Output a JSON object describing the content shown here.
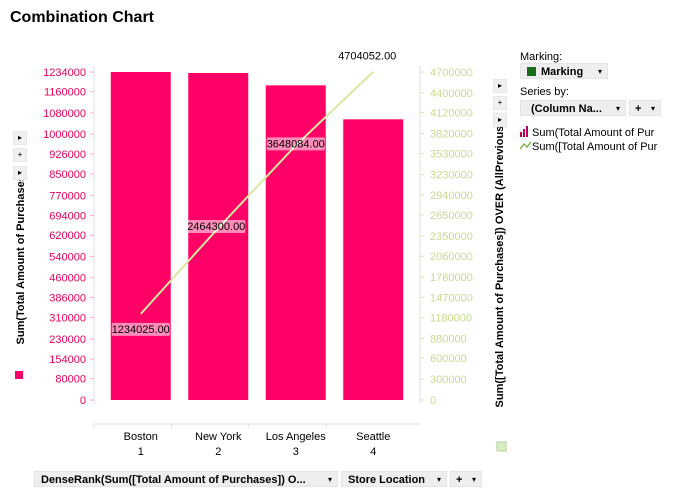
{
  "title": "Combination Chart",
  "controls": {
    "marking_label": "Marking:",
    "marking_value": "Marking",
    "marking_color": "#1a6b1a",
    "series_by_label": "Series by:",
    "series_by_value": "(Column Na...",
    "x_axis_selector": "DenseRank(Sum([Total Amount of Purchases]) O...",
    "x_axis_selector_2": "Store Location",
    "plus": "+",
    "arrow": "▾",
    "right_arrow": "▸"
  },
  "legend": [
    {
      "label": "Sum(Total Amount of Pur",
      "icon": "bar-series-icon",
      "color": "#b5005b"
    },
    {
      "label": "Sum([Total Amount of Pur",
      "icon": "line-series-icon",
      "color": "#8ab85a"
    }
  ],
  "chart_data": {
    "type": "bar",
    "categories": [
      "Boston",
      "New York",
      "Los Angeles",
      "Seattle"
    ],
    "category_ranks": [
      "1",
      "2",
      "3",
      "4"
    ],
    "ylabel": "Sum(Total Amount of Purchases)",
    "y2label": "Sum([Total Amount of Purchases]) OVER (AllPrevious...",
    "ylim": [
      0,
      1234000
    ],
    "y2lim": [
      0,
      4700000
    ],
    "yticks": [
      "0",
      "80000",
      "154000",
      "230000",
      "310000",
      "386000",
      "460000",
      "540000",
      "620000",
      "694000",
      "770000",
      "850000",
      "926000",
      "1000000",
      "1080000",
      "1160000",
      "1234000"
    ],
    "y2ticks": [
      "0",
      "300000",
      "600000",
      "880000",
      "1180000",
      "1470000",
      "1760000",
      "2060000",
      "2350000",
      "2650000",
      "2940000",
      "3230000",
      "3530000",
      "3820000",
      "4120000",
      "4400000",
      "4700000"
    ],
    "series": [
      {
        "name": "Sum(Total Amount of Purchases)",
        "type": "bar",
        "color": "#ff0066",
        "values": [
          1234025,
          1230275,
          1183784,
          1055968
        ]
      },
      {
        "name": "Sum([Total Amount of Purchases]) OVER (AllPrevious...",
        "type": "line",
        "color": "#d8e8a0",
        "values": [
          1234025,
          2464300,
          3648084,
          4704052
        ],
        "labels": [
          "1234025.00",
          "2464300.00",
          "3648084.00",
          "4704052.00"
        ]
      }
    ]
  }
}
